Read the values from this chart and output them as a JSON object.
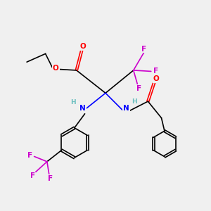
{
  "bg_color": "#f0f0f0",
  "atom_colors": {
    "C": "#000000",
    "H": "#6abfbf",
    "N": "#0000ff",
    "O": "#ff0000",
    "F": "#cc00cc"
  },
  "figsize": [
    3.0,
    3.0
  ],
  "dpi": 100
}
